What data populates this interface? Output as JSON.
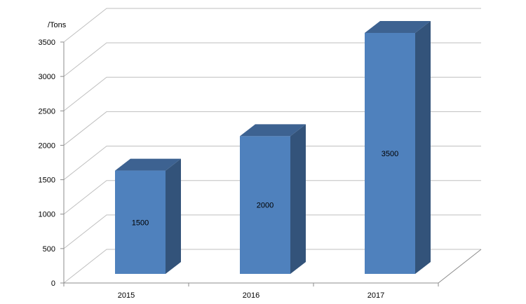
{
  "chart_data": {
    "type": "bar",
    "title": "",
    "xlabel": "",
    "ylabel": "",
    "unit_label": "/Tons",
    "categories": [
      "2015",
      "2016",
      "2017"
    ],
    "series": [
      {
        "values": [
          1500,
          2000,
          3500
        ],
        "data_labels": [
          "1500",
          "2000",
          "3500"
        ]
      }
    ],
    "ylim": [
      0,
      3500
    ],
    "y_ticks": [
      0,
      500,
      1000,
      1500,
      2000,
      2500,
      3000,
      3500
    ],
    "y_tick_labels": [
      "0",
      "500",
      "1000",
      "1500",
      "2000",
      "2500",
      "3000",
      "3500"
    ],
    "grid": true,
    "legend": "none",
    "three_d": true,
    "colors": {
      "bar_front": "#4f81bd",
      "bar_top": "#3d6291",
      "bar_side": "#33537a",
      "gridline": "#bfbfbf",
      "axis": "#8c8c8c"
    }
  }
}
